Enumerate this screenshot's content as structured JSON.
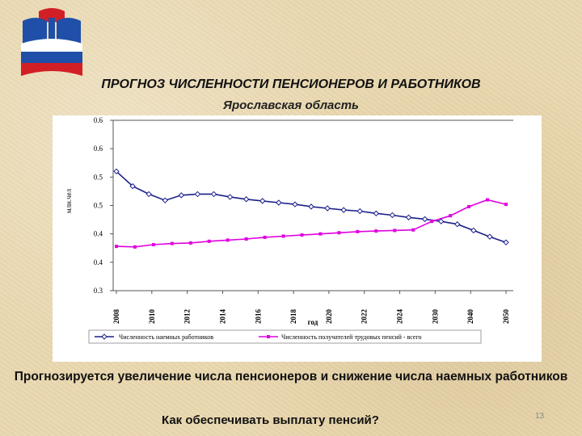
{
  "slide": {
    "title": "ПРОГНОЗ ЧИСЛЕННОСТИ ПЕНСИОНЕРОВ И РАБОТНИКОВ",
    "subtitle": "Ярославская область",
    "note": "Прогнозируется увеличение числа пенсионеров и снижение числа наемных работников",
    "question": "Как обеспечивать выплату пенсий?",
    "page_number": "13"
  },
  "colors": {
    "logo_blue": "#1f4fa8",
    "logo_red": "#d21f26",
    "series_workers": "#1b1f8a",
    "series_pensioners": "#e000e0",
    "background": "#e9d8b0"
  },
  "chart_data": {
    "type": "line",
    "ylabel": "млн.чел",
    "xlabel": "год",
    "ylim": [
      0.3,
      0.6
    ],
    "y_ticks": [
      {
        "value": 0.6,
        "label": "0.6"
      },
      {
        "value": 0.55,
        "label": "0.6"
      },
      {
        "value": 0.5,
        "label": "0.5"
      },
      {
        "value": 0.45,
        "label": "0.5"
      },
      {
        "value": 0.4,
        "label": "0.4"
      },
      {
        "value": 0.35,
        "label": "0.4"
      },
      {
        "value": 0.3,
        "label": "0.3"
      }
    ],
    "x_tick_labels": [
      "2008",
      "2010",
      "2012",
      "2014",
      "2016",
      "2018",
      "2020",
      "2022",
      "2024",
      "2030",
      "2040",
      "2050"
    ],
    "grid": false,
    "legend_position": "bottom",
    "series": [
      {
        "name": "Численность наемных работников",
        "marker": "diamond-hollow",
        "values": [
          0.51,
          0.484,
          0.47,
          0.459,
          0.468,
          0.47,
          0.47,
          0.465,
          0.461,
          0.458,
          0.455,
          0.452,
          0.448,
          0.445,
          0.442,
          0.44,
          0.436,
          0.433,
          0.429,
          0.426,
          0.422,
          0.417,
          0.406,
          0.395,
          0.385
        ]
      },
      {
        "name": "Численность получателей трудовых пенсий - всего",
        "marker": "square",
        "values": [
          0.378,
          0.377,
          0.381,
          0.383,
          0.384,
          0.387,
          0.389,
          0.391,
          0.394,
          0.396,
          0.398,
          0.4,
          0.402,
          0.404,
          0.405,
          0.406,
          0.407,
          0.422,
          0.432,
          0.448,
          0.46,
          0.452
        ]
      }
    ]
  }
}
